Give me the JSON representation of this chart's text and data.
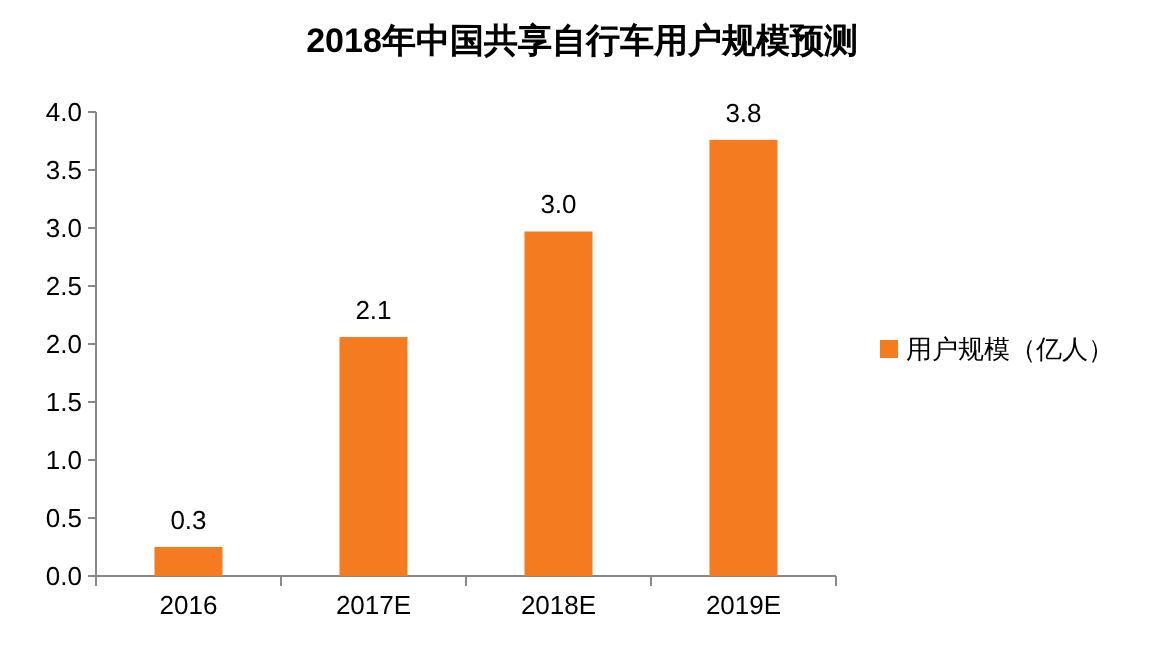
{
  "chart_data": {
    "type": "bar",
    "title": "2018年中国共享自行车用户规模预测",
    "categories": [
      "2016",
      "2017E",
      "2018E",
      "2019E"
    ],
    "series": [
      {
        "name": "用户规模（亿人）",
        "color": "#f47b20",
        "values": [
          0.25,
          2.06,
          2.97,
          3.76
        ],
        "value_labels": [
          "0.3",
          "2.1",
          "3.0",
          "3.8"
        ]
      }
    ],
    "ylim": [
      0,
      4
    ],
    "yticks": [
      {
        "value": 0,
        "label": "0.0"
      },
      {
        "value": 0.5,
        "label": "0.5"
      },
      {
        "value": 1,
        "label": "1.0"
      },
      {
        "value": 1.5,
        "label": "1.5"
      },
      {
        "value": 2,
        "label": "2.0"
      },
      {
        "value": 2.5,
        "label": "2.5"
      },
      {
        "value": 3,
        "label": "3.0"
      },
      {
        "value": 3.5,
        "label": "3.5"
      },
      {
        "value": 4,
        "label": "4.0"
      }
    ],
    "legend": "right"
  }
}
